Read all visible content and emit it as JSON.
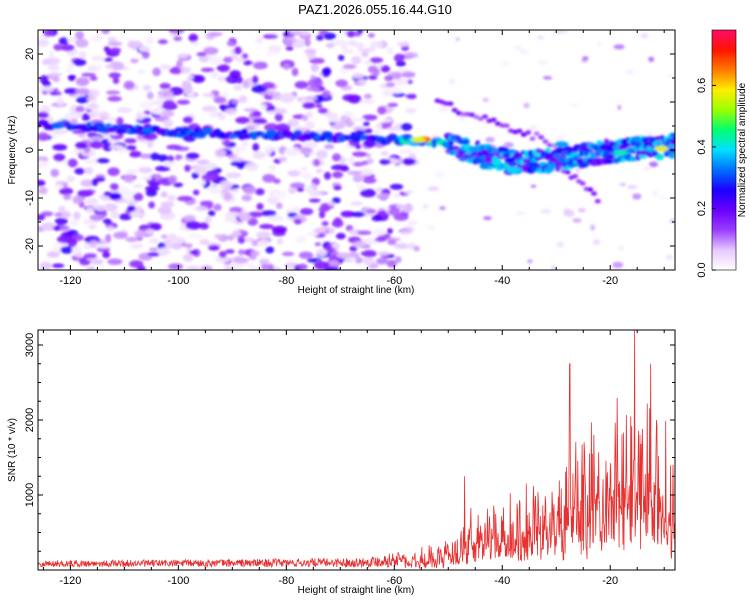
{
  "title": "PAZ1.2026.055.16.44.G10",
  "chart_data": [
    {
      "type": "heatmap",
      "xlabel": "Height of straight line (km)",
      "ylabel": "Frequency (Hz)",
      "xlim": [
        -126,
        -8
      ],
      "ylim": [
        -25,
        25
      ],
      "xticks": [
        -120,
        -100,
        -80,
        -60,
        -40,
        -20
      ],
      "yticks": [
        -20,
        -10,
        0,
        10,
        20
      ],
      "colorbar": {
        "label": "Normalized spectral amplitude",
        "range": [
          0,
          0.78
        ],
        "ticks": [
          0.0,
          0.2,
          0.4,
          0.6
        ],
        "colors": [
          "#ffffff",
          "#e6c8ff",
          "#9a3cff",
          "#6a00ff",
          "#1a00ff",
          "#0070ff",
          "#00e0ff",
          "#00ff70",
          "#9aff00",
          "#ffee00",
          "#ff7a00",
          "#ff1500",
          "#ff0a6a"
        ]
      },
      "ridge": [
        {
          "x": -126,
          "y": 5.5
        },
        {
          "x": -112,
          "y": 4.5
        },
        {
          "x": -96,
          "y": 3.5
        },
        {
          "x": -80,
          "y": 3.0
        },
        {
          "x": -66,
          "y": 2.5
        },
        {
          "x": -58,
          "y": 2.0
        },
        {
          "x": -54,
          "y": 2.0
        },
        {
          "x": -48,
          "y": 0.5
        },
        {
          "x": -44,
          "y": -1.0
        },
        {
          "x": -38,
          "y": -2.5
        },
        {
          "x": -30,
          "y": -2.0
        },
        {
          "x": -24,
          "y": -1.0
        },
        {
          "x": -18,
          "y": 0.0
        },
        {
          "x": -12,
          "y": 0.5
        },
        {
          "x": -8,
          "y": 1.0
        }
      ]
    },
    {
      "type": "line",
      "xlabel": "Height of straight line (km)",
      "ylabel": "SNR (10 * v/v)",
      "xlim": [
        -126,
        -8
      ],
      "ylim": [
        0,
        3200
      ],
      "xticks": [
        -120,
        -100,
        -80,
        -60,
        -40,
        -20
      ],
      "yticks": [
        1000,
        2000,
        3000
      ],
      "color": "#e83030",
      "envelope": [
        {
          "x": -126,
          "y": 80
        },
        {
          "x": -100,
          "y": 90
        },
        {
          "x": -80,
          "y": 100
        },
        {
          "x": -66,
          "y": 110
        },
        {
          "x": -58,
          "y": 200
        },
        {
          "x": -54,
          "y": 350
        },
        {
          "x": -50,
          "y": 500
        },
        {
          "x": -47,
          "y": 800
        },
        {
          "x": -44,
          "y": 1000
        },
        {
          "x": -40,
          "y": 1100
        },
        {
          "x": -36,
          "y": 1300
        },
        {
          "x": -32,
          "y": 1600
        },
        {
          "x": -28,
          "y": 2000
        },
        {
          "x": -24,
          "y": 2300
        },
        {
          "x": -20,
          "y": 2500
        },
        {
          "x": -17,
          "y": 2700
        },
        {
          "x": -14,
          "y": 2600
        },
        {
          "x": -10,
          "y": 2300
        },
        {
          "x": -8,
          "y": 1500
        }
      ],
      "peaks": [
        {
          "x": -15.5,
          "y": 3200
        },
        {
          "x": -27.5,
          "y": 2750
        },
        {
          "x": -12.5,
          "y": 2750
        },
        {
          "x": -47,
          "y": 1250
        }
      ]
    }
  ]
}
